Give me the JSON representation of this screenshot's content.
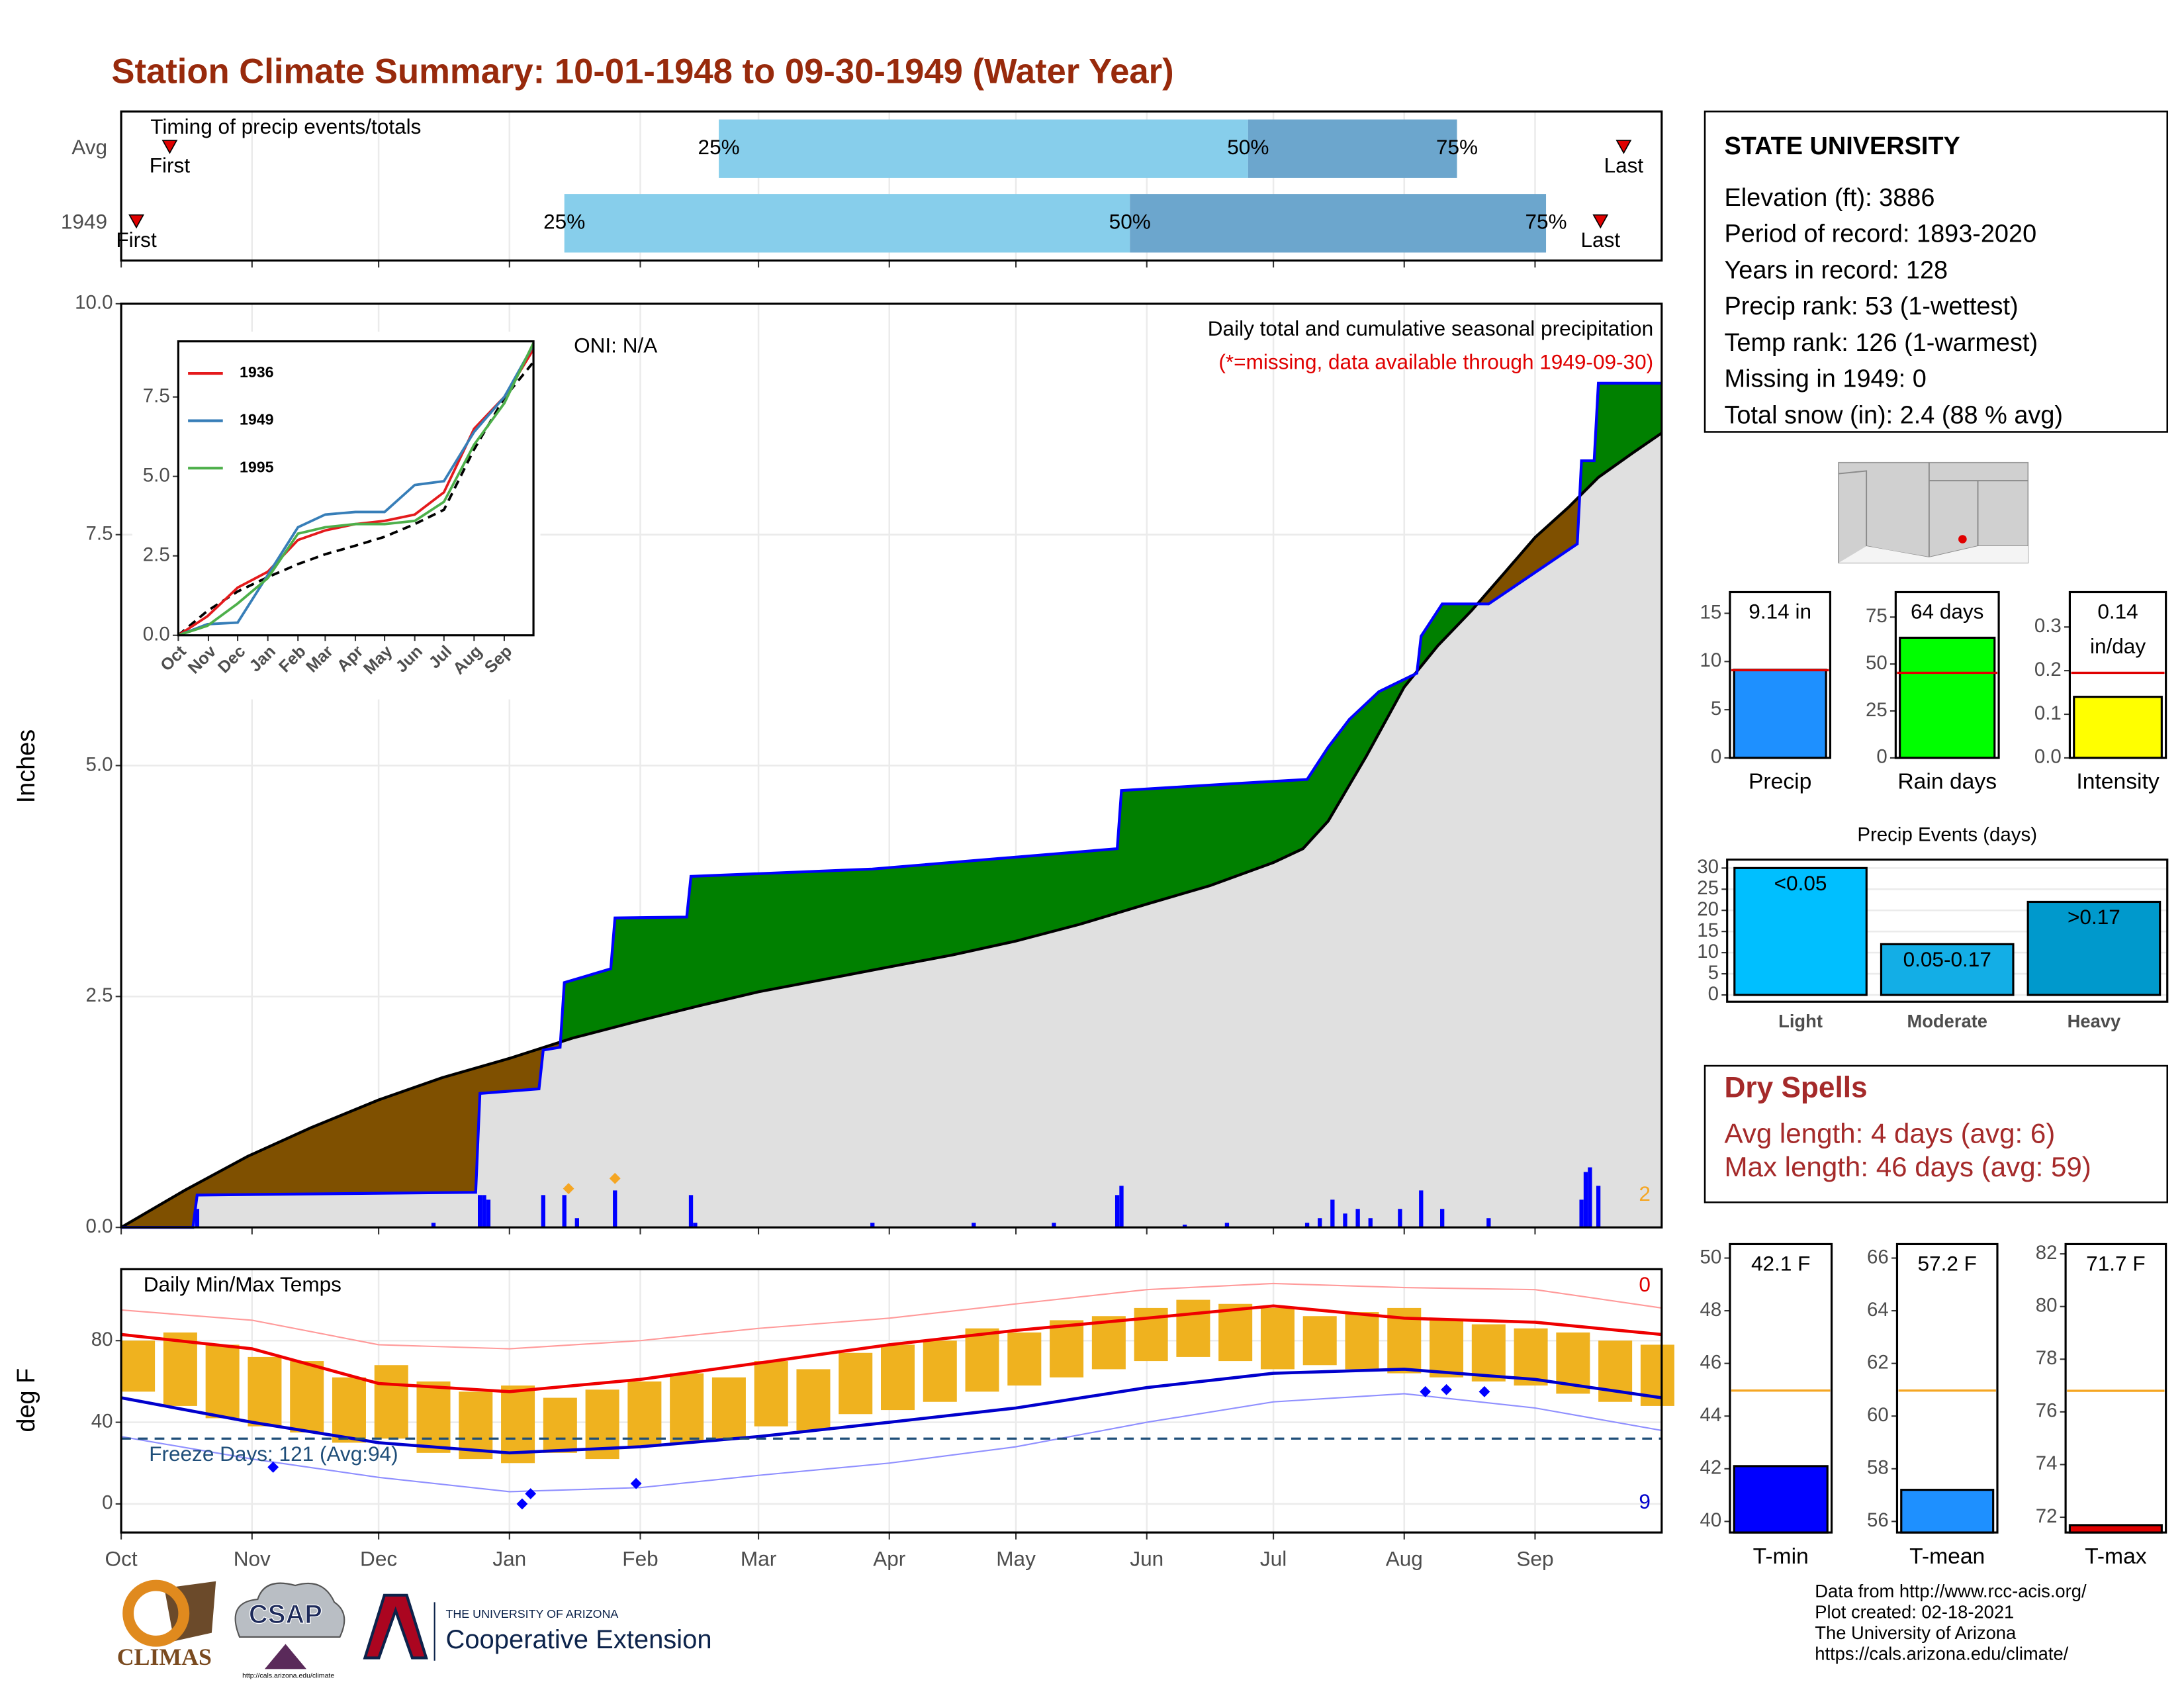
{
  "title": "Station Climate Summary: 10-01-1948 to 09-30-1949 (Water Year)",
  "chart_data": [
    {
      "type": "timing",
      "title": "Timing of precip events/totals",
      "rows": [
        "Avg",
        "1949"
      ],
      "xlim": [
        0,
        365
      ],
      "xticks": [
        0,
        31,
        61,
        92,
        123,
        151,
        182,
        212,
        243,
        273,
        304,
        335
      ],
      "first": [
        11.5,
        3.6
      ],
      "last": [
        356,
        350.5
      ],
      "q25": [
        141.6,
        105
      ],
      "q50": [
        267,
        239
      ],
      "q75": [
        316.5,
        337.6
      ],
      "first_label": "First",
      "last_label": "Last",
      "q25_label": "25%",
      "q50_label": "50%",
      "q75_label": "75%",
      "colors": {
        "early": "#87ceeb",
        "late": "#6ca6cd",
        "marker": "#e00000"
      }
    },
    {
      "type": "cumulative_precip",
      "ylabel": "Inches",
      "ylim": [
        0,
        10
      ],
      "yticks": [
        {
          "value": 0,
          "label": "0.0"
        },
        2.5,
        {
          "value": 5,
          "label": "5.0"
        },
        7.5,
        {
          "value": 10,
          "label": "10.0"
        }
      ],
      "xlim": [
        0,
        365
      ],
      "xticks": [
        0,
        31,
        61,
        92,
        123,
        151,
        182,
        212,
        243,
        273,
        304,
        335
      ],
      "grid": true,
      "annotations": {
        "oni": "ONI: N/A",
        "subtitle": "Daily total and cumulative seasonal precipitation",
        "missing_note": "(*=missing, data available through 1949-09-30)",
        "count": "2"
      },
      "average": {
        "color": "#000000",
        "fill": "#e0e0e0",
        "x": [
          0,
          15,
          30,
          45,
          61,
          76,
          92,
          107,
          123,
          137,
          151,
          166,
          182,
          197,
          212,
          227,
          243,
          258,
          273,
          280,
          286,
          295,
          304,
          312,
          320,
          328,
          335,
          343,
          350,
          358,
          365
        ],
        "values": [
          0,
          0.4,
          0.77,
          1.08,
          1.38,
          1.62,
          1.83,
          2.05,
          2.24,
          2.4,
          2.55,
          2.68,
          2.82,
          2.95,
          3.1,
          3.28,
          3.5,
          3.7,
          3.95,
          4.1,
          4.4,
          5.1,
          5.85,
          6.3,
          6.68,
          7.1,
          7.47,
          7.8,
          8.12,
          8.38,
          8.6
        ]
      },
      "year": {
        "color": "#0000ff",
        "x": [
          0,
          17,
          18,
          84,
          85,
          99,
          100,
          104,
          105,
          116,
          117,
          134,
          135,
          178,
          236,
          237,
          262,
          281,
          286,
          291,
          298,
          307,
          308,
          313,
          324,
          345,
          346,
          349,
          350,
          365
        ],
        "values": [
          0,
          0,
          0.35,
          0.38,
          1.45,
          1.5,
          1.92,
          1.95,
          2.65,
          2.8,
          3.35,
          3.36,
          3.8,
          3.88,
          4.1,
          4.73,
          4.8,
          4.85,
          5.2,
          5.5,
          5.8,
          6.0,
          6.4,
          6.75,
          6.75,
          7.4,
          8.3,
          8.3,
          9.14,
          9.14
        ]
      },
      "above_color": "#008000",
      "below_color": "#7f5000",
      "daily": {
        "color": "#0000ff",
        "x": [
          18,
          74,
          85,
          86,
          87,
          100,
          105,
          108,
          117,
          135,
          136,
          178,
          202,
          221,
          236,
          237,
          252,
          262,
          281,
          284,
          287,
          290,
          293,
          296,
          303,
          308,
          313,
          324,
          346,
          347,
          348,
          350
        ],
        "values": [
          0.2,
          0.05,
          0.35,
          0.35,
          0.3,
          0.35,
          0.35,
          0.1,
          0.4,
          0.35,
          0.05,
          0.05,
          0.05,
          0.05,
          0.35,
          0.45,
          0.03,
          0.05,
          0.05,
          0.1,
          0.3,
          0.15,
          0.2,
          0.1,
          0.2,
          0.4,
          0.2,
          0.1,
          0.3,
          0.6,
          0.65,
          0.45
        ]
      },
      "snow": {
        "color": "#f5a623",
        "x": [
          106,
          117
        ],
        "values": [
          0.42,
          0.53
        ]
      }
    },
    {
      "type": "line",
      "ylim": [
        0,
        9.25
      ],
      "yticks": [
        {
          "value": 0,
          "label": "0.0"
        },
        2.5,
        {
          "value": 5,
          "label": "5.0"
        },
        7.5
      ],
      "xlim": [
        0,
        365
      ],
      "xticks": [
        {
          "value": 0,
          "label": "Oct"
        },
        {
          "value": 31,
          "label": "Nov"
        },
        {
          "value": 61,
          "label": "Dec"
        },
        {
          "value": 92,
          "label": "Jan"
        },
        {
          "value": 123,
          "label": "Feb"
        },
        {
          "value": 151,
          "label": "Mar"
        },
        {
          "value": 182,
          "label": "Apr"
        },
        {
          "value": 212,
          "label": "May"
        },
        {
          "value": 243,
          "label": "Jun"
        },
        {
          "value": 273,
          "label": "Jul"
        },
        {
          "value": 304,
          "label": "Aug"
        },
        {
          "value": 335,
          "label": "Sep"
        }
      ],
      "legend": "top-left",
      "x": [
        0,
        30,
        61,
        92,
        123,
        151,
        182,
        212,
        243,
        273,
        304,
        335,
        365
      ],
      "series": [
        {
          "name": "1936",
          "color": "#e41a1c",
          "values": [
            0,
            0.6,
            1.5,
            2.0,
            3.0,
            3.3,
            3.5,
            3.6,
            3.8,
            4.5,
            6.5,
            7.5,
            9.0
          ]
        },
        {
          "name": "1949",
          "color": "#377eb8",
          "values": [
            0,
            0.35,
            0.4,
            1.9,
            3.4,
            3.8,
            3.88,
            3.88,
            4.73,
            4.85,
            6.4,
            7.5,
            9.14
          ]
        },
        {
          "name": "1995",
          "color": "#4daf4a",
          "values": [
            0,
            0.3,
            1.0,
            1.8,
            3.2,
            3.4,
            3.5,
            3.5,
            3.6,
            4.2,
            6.0,
            7.3,
            9.2
          ]
        }
      ],
      "reference": {
        "color": "#000000",
        "dashed": true,
        "values": [
          0,
          0.77,
          1.38,
          1.83,
          2.24,
          2.55,
          2.82,
          3.1,
          3.5,
          3.95,
          5.85,
          7.47,
          8.6
        ]
      }
    },
    {
      "type": "temperature",
      "title": "Daily Min/Max Temps",
      "ylabel": "deg F",
      "ylim": [
        -14,
        115
      ],
      "yticks": [
        0,
        40,
        80
      ],
      "xlim": [
        0,
        365
      ],
      "grid": true,
      "xticks": [
        {
          "value": 0,
          "label": "Oct"
        },
        {
          "value": 31,
          "label": "Nov"
        },
        {
          "value": 61,
          "label": "Dec"
        },
        {
          "value": 92,
          "label": "Jan"
        },
        {
          "value": 123,
          "label": "Feb"
        },
        {
          "value": 151,
          "label": "Mar"
        },
        {
          "value": 182,
          "label": "Apr"
        },
        {
          "value": 212,
          "label": "May"
        },
        {
          "value": 243,
          "label": "Jun"
        },
        {
          "value": 273,
          "label": "Jul"
        },
        {
          "value": 304,
          "label": "Aug"
        },
        {
          "value": 335,
          "label": "Sep"
        }
      ],
      "record_high_count": "0",
      "record_low_count": "9",
      "freeze": {
        "value": 32,
        "label": "Freeze Days: 121 (Avg:94)",
        "color": "#1f4e79"
      },
      "normals_x": [
        0,
        31,
        61,
        92,
        123,
        151,
        182,
        212,
        243,
        273,
        304,
        335,
        365
      ],
      "avg_max": {
        "color": "#ee0000",
        "values": [
          83,
          76,
          59,
          55,
          61,
          69,
          78,
          85,
          91,
          97,
          91,
          89,
          83
        ]
      },
      "avg_min": {
        "color": "#0000cc",
        "values": [
          52,
          40,
          30,
          25,
          28,
          33,
          40,
          47,
          57,
          64,
          66,
          61,
          52
        ]
      },
      "record_max": {
        "color": "#ff9a9a",
        "values": [
          95,
          90,
          78,
          76,
          80,
          86,
          91,
          98,
          105,
          108,
          106,
          105,
          96
        ]
      },
      "record_min": {
        "color": "#8f8fff",
        "values": [
          33,
          22,
          13,
          6,
          8,
          14,
          20,
          28,
          40,
          50,
          54,
          47,
          36
        ]
      },
      "daily": {
        "color": "#efb21f",
        "x": [
          0,
          10,
          20,
          30,
          40,
          50,
          60,
          70,
          80,
          90,
          100,
          110,
          120,
          130,
          140,
          150,
          160,
          170,
          180,
          190,
          200,
          210,
          220,
          230,
          240,
          250,
          260,
          270,
          280,
          290,
          300,
          310,
          320,
          330,
          340,
          350,
          360
        ],
        "max": [
          80,
          84,
          78,
          72,
          70,
          62,
          68,
          60,
          55,
          58,
          52,
          56,
          60,
          64,
          62,
          70,
          66,
          74,
          78,
          80,
          86,
          84,
          90,
          92,
          96,
          100,
          98,
          96,
          92,
          94,
          96,
          90,
          88,
          86,
          84,
          80,
          78
        ],
        "min": [
          55,
          48,
          42,
          38,
          35,
          30,
          32,
          25,
          22,
          20,
          25,
          22,
          28,
          30,
          32,
          38,
          36,
          44,
          46,
          50,
          55,
          58,
          62,
          66,
          70,
          72,
          70,
          66,
          68,
          66,
          64,
          62,
          60,
          58,
          54,
          50,
          48
        ]
      },
      "record_lows": {
        "color": "#0000ff",
        "x": [
          36,
          95,
          97,
          122,
          309,
          314,
          323
        ],
        "values": [
          18,
          0,
          5,
          10,
          55,
          56,
          55
        ]
      }
    },
    {
      "type": "summary_bar",
      "categories": [
        "Precip"
      ],
      "values": [
        9.14
      ],
      "value_labels": [
        "9.14 in"
      ],
      "avg": 9.1,
      "avg_color": "#e00000",
      "color": "#1e90ff",
      "ylim": [
        0,
        17.2
      ],
      "yticks": [
        0,
        5,
        10,
        15
      ]
    },
    {
      "type": "summary_bar",
      "categories": [
        "Rain days"
      ],
      "values": [
        64
      ],
      "value_labels": [
        "64 days"
      ],
      "avg": 45.3,
      "avg_color": "#e00000",
      "color": "#00ff00",
      "ylim": [
        0,
        88.3
      ],
      "yticks": [
        0,
        25,
        50,
        75
      ]
    },
    {
      "type": "summary_bar",
      "categories": [
        "Intensity"
      ],
      "values": [
        0.14
      ],
      "value_labels": [
        "0.14"
      ],
      "unit_label": "in/day",
      "avg": 0.195,
      "avg_color": "#e00000",
      "color": "#ffff00",
      "ylim": [
        0,
        0.38
      ],
      "yticks": [
        {
          "value": 0,
          "label": "0.0"
        },
        0.1,
        0.2,
        0.3
      ]
    },
    {
      "type": "bar",
      "title": "Precip Events (days)",
      "categories": [
        "Light",
        "Moderate",
        "Heavy"
      ],
      "values": [
        30,
        12,
        22
      ],
      "bar_labels": [
        "<0.05",
        "0.05-0.17",
        ">0.17"
      ],
      "colors": [
        "#00bfff",
        "#13aee6",
        "#0099cc"
      ],
      "ylim": [
        -1.6,
        32
      ],
      "yticks": [
        0,
        5,
        10,
        15,
        20,
        25,
        30
      ],
      "grid": true
    },
    {
      "type": "summary_bar",
      "categories": [
        "T-min"
      ],
      "values": [
        42.1
      ],
      "value_labels": [
        "42.1 F"
      ],
      "avg": 44.97,
      "avg_color": "#f5a623",
      "color": "#0000ff",
      "ylim": [
        39.58,
        50.53
      ],
      "yticks": [
        40,
        42,
        44,
        46,
        48,
        50
      ]
    },
    {
      "type": "summary_bar",
      "categories": [
        "T-mean"
      ],
      "values": [
        57.2
      ],
      "value_labels": [
        "57.2 F"
      ],
      "avg": 60.97,
      "avg_color": "#f5a623",
      "color": "#1e90ff",
      "ylim": [
        55.58,
        66.53
      ],
      "yticks": [
        56,
        58,
        60,
        62,
        64,
        66
      ]
    },
    {
      "type": "summary_bar",
      "categories": [
        "T-max"
      ],
      "values": [
        71.7
      ],
      "value_labels": [
        "71.7 F"
      ],
      "avg": 76.8,
      "avg_color": "#f5a623",
      "color": "#e00000",
      "ylim": [
        71.42,
        82.37
      ],
      "yticks": [
        72,
        74,
        76,
        78,
        80,
        82
      ]
    }
  ],
  "station_info": {
    "name": "STATE UNIVERSITY",
    "lines": [
      "Elevation (ft): 3886",
      "Period of record: 1893-2020",
      "Years in record: 128",
      "Precip rank: 53 (1-wettest)",
      "Temp rank: 126 (1-warmest)",
      "Missing in 1949: 0",
      "Total snow (in): 2.4 (88 % avg)"
    ]
  },
  "dry_spells": {
    "title": "Dry Spells",
    "lines": [
      "Avg length: 4 days (avg: 6)",
      "Max length: 46 days (avg: 59)"
    ]
  },
  "credits": [
    "Data from http://www.rcc-acis.org/",
    "Plot created: 02-18-2021",
    "The University of Arizona",
    "https://cals.arizona.edu/climate/"
  ],
  "logos": {
    "climas": "CLIMAS",
    "csap": "CSAP",
    "csap_url": "http://cals.arizona.edu/climate",
    "ua": "THE UNIVERSITY OF ARIZONA",
    "extension": "Cooperative Extension"
  }
}
